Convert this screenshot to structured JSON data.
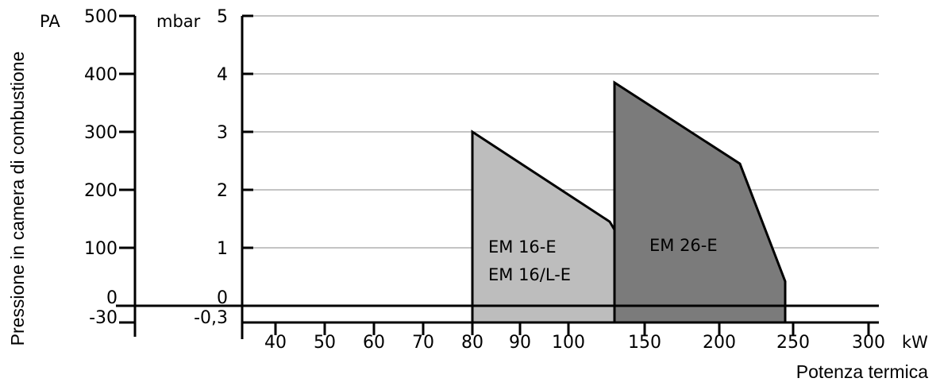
{
  "chart_data": {
    "type": "area",
    "ylabel": "Pressione in camera di combustione",
    "xlabel": "Potenza termica",
    "x_unit": "kW",
    "y_units": {
      "pa": "PA",
      "mbar": "mbar"
    },
    "ylim_mbar": [
      -0.3,
      5
    ],
    "ylim_pa": [
      -30,
      500
    ],
    "pa_ticks": [
      "500",
      "400",
      "300",
      "200",
      "100",
      "0",
      "-30"
    ],
    "mbar_ticks": [
      "5",
      "4",
      "3",
      "2",
      "1",
      "0",
      "-0,3"
    ],
    "x_ticks": [
      "40",
      "50",
      "60",
      "70",
      "80",
      "90",
      "100",
      "150",
      "200",
      "250",
      "300"
    ],
    "series": [
      {
        "name": "EM 16-E",
        "name2": "EM 16/L-E",
        "color": "#bdbdbd",
        "points_kw_mbar": [
          [
            80,
            -0.3
          ],
          [
            80,
            3.0
          ],
          [
            125,
            1.45
          ],
          [
            135,
            0.2
          ],
          [
            135,
            -0.3
          ]
        ],
        "divider_kw": 130
      },
      {
        "name": "EM 26-E",
        "color": "#7b7b7b",
        "points_kw_mbar": [
          [
            130,
            -0.3
          ],
          [
            130,
            3.85
          ],
          [
            212,
            2.45
          ],
          [
            243,
            0.42
          ],
          [
            243,
            -0.3
          ]
        ]
      }
    ],
    "baseline_mbar": 0,
    "gridlines_mbar": [
      5,
      4,
      3,
      2,
      1
    ]
  }
}
